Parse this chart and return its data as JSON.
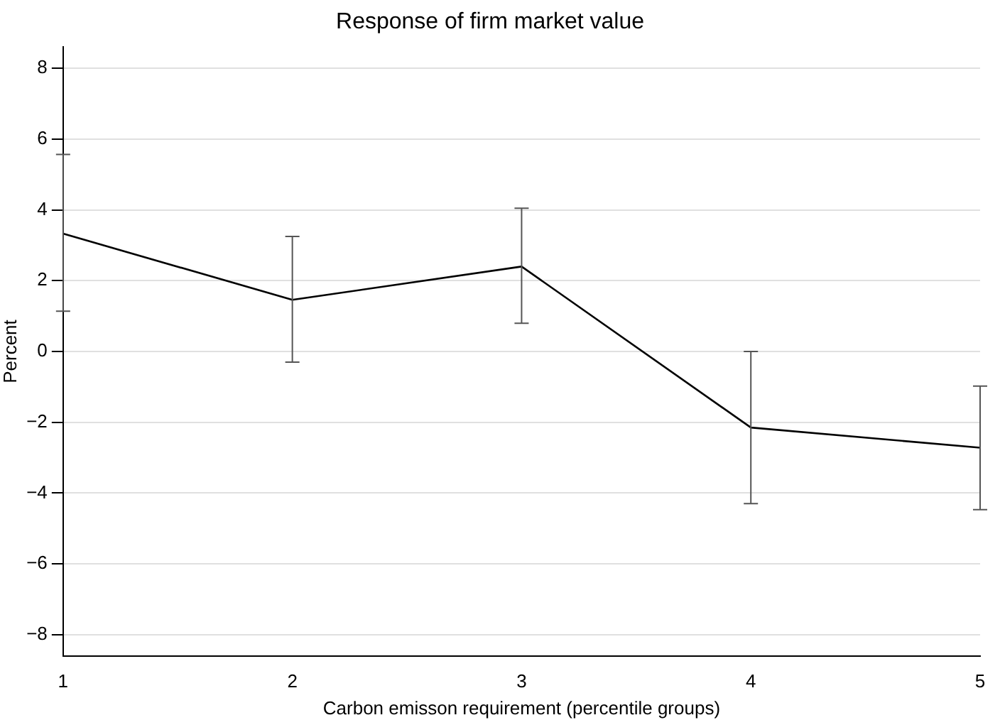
{
  "chart_data": {
    "type": "line",
    "title": "Response of firm market value",
    "xlabel": "Carbon emisson requirement (percentile groups)",
    "ylabel": "Percent",
    "x": [
      1,
      2,
      3,
      4,
      5
    ],
    "series": [
      {
        "color": "#000000",
        "values": [
          3.33,
          1.46,
          2.4,
          -2.15,
          -2.72
        ],
        "errors": [
          [
            1.14,
            5.57
          ],
          [
            -0.3,
            3.25
          ],
          [
            0.8,
            4.05
          ],
          [
            -4.3,
            0
          ],
          [
            -4.47,
            -0.98
          ]
        ]
      }
    ],
    "xlim": [
      1,
      5
    ],
    "xticks": [
      1,
      2,
      3,
      4,
      5
    ],
    "ylim": [
      -8.6,
      8.6
    ],
    "yticks": [
      {
        "value": -8,
        "label": "−8"
      },
      {
        "value": -6,
        "label": "−6"
      },
      {
        "value": -4,
        "label": "−4"
      },
      {
        "value": -2,
        "label": "−2"
      },
      0,
      2,
      4,
      6,
      8
    ],
    "grid": "y",
    "legend": false,
    "marker": "none",
    "line_style": "solid"
  }
}
